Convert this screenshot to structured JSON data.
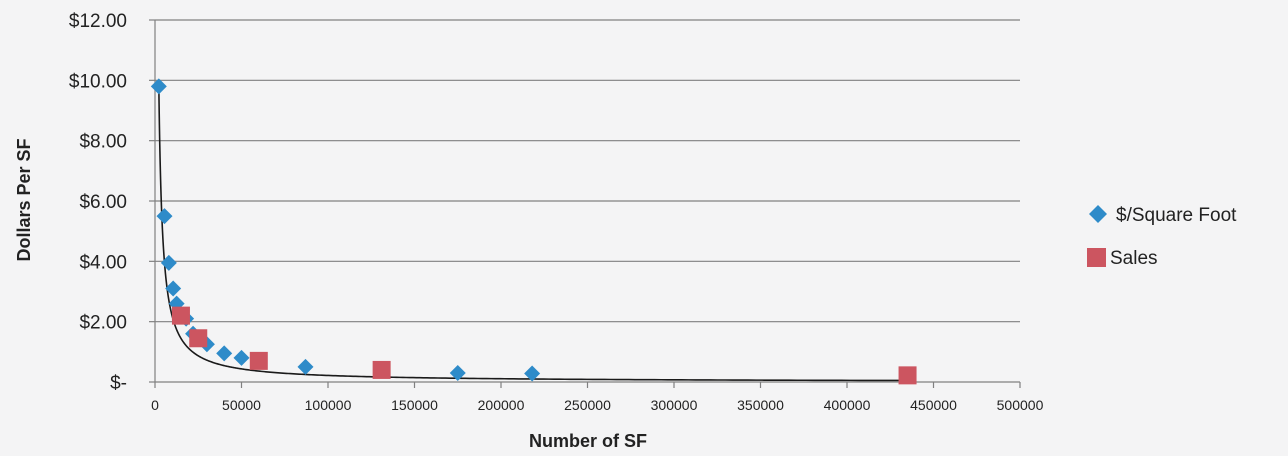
{
  "chart_data": {
    "type": "scatter",
    "xlabel": "Number of SF",
    "ylabel": "Dollars Per SF",
    "xlim": [
      0,
      500000
    ],
    "ylim": [
      0,
      12
    ],
    "x_ticks": [
      0,
      50000,
      100000,
      150000,
      200000,
      250000,
      300000,
      350000,
      400000,
      450000,
      500000
    ],
    "x_tick_labels": [
      "0",
      "50000",
      "100000",
      "150000",
      "200000",
      "250000",
      "300000",
      "350000",
      "400000",
      "450000",
      "500000"
    ],
    "y_ticks": [
      0,
      2,
      4,
      6,
      8,
      10,
      12
    ],
    "y_tick_labels": [
      "$-",
      "$2.00",
      "$4.00",
      "$6.00",
      "$8.00",
      "$10.00",
      "$12.00"
    ],
    "grid": "horizontal",
    "legend_position": "right",
    "series": [
      {
        "name": "$/Square Foot",
        "marker": "diamond",
        "color": "#2e8bc9",
        "points": [
          [
            2200,
            9.8
          ],
          [
            5500,
            5.5
          ],
          [
            8000,
            3.95
          ],
          [
            10500,
            3.1
          ],
          [
            12500,
            2.6
          ],
          [
            18000,
            2.1
          ],
          [
            22000,
            1.6
          ],
          [
            30000,
            1.25
          ],
          [
            40000,
            0.95
          ],
          [
            50000,
            0.8
          ],
          [
            87000,
            0.5
          ],
          [
            175000,
            0.3
          ],
          [
            218000,
            0.28
          ]
        ]
      },
      {
        "name": "Sales",
        "marker": "square",
        "color": "#cc5560",
        "points": [
          [
            15000,
            2.2
          ],
          [
            25000,
            1.45
          ],
          [
            60000,
            0.7
          ],
          [
            131000,
            0.4
          ],
          [
            435000,
            0.22
          ]
        ]
      }
    ],
    "trendline": {
      "type": "power",
      "color": "#1a1a1a",
      "coefficient": 21700,
      "exponent": -1.0,
      "x_range": [
        2200,
        435000
      ]
    }
  }
}
